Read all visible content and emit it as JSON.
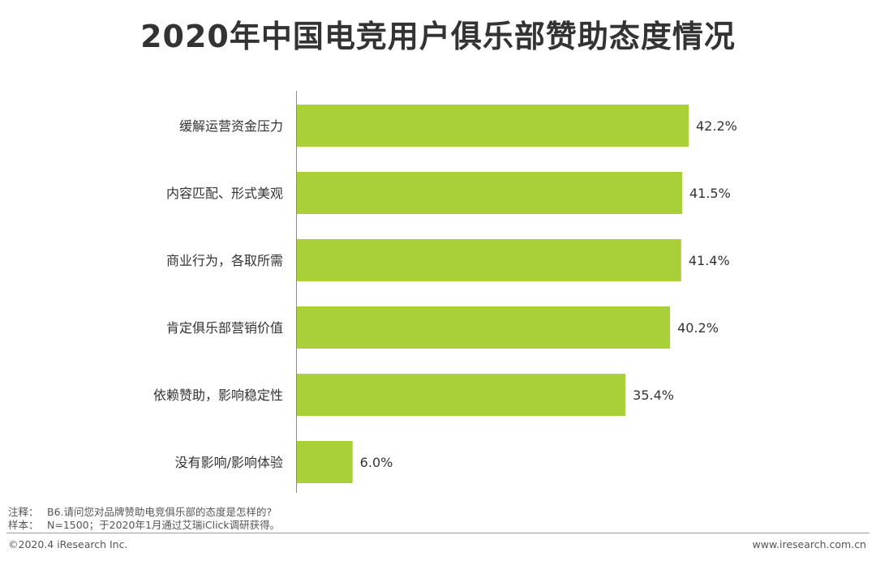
{
  "page": {
    "title": "2020年中国电竞用户俱乐部赞助态度情况"
  },
  "chart_data": {
    "type": "bar",
    "orientation": "horizontal",
    "title": "2020年中国电竞用户俱乐部赞助态度情况",
    "categories": [
      "缓解运营资金压力",
      "内容匹配、形式美观",
      "商业行为，各取所需",
      "肯定俱乐部营销价值",
      "依赖赞助，影响稳定性",
      "没有影响/影响体验"
    ],
    "values": [
      42.2,
      41.5,
      41.4,
      40.2,
      35.4,
      6.0
    ],
    "value_labels": [
      "42.2%",
      "41.5%",
      "41.4%",
      "40.2%",
      "35.4%",
      "6.0%"
    ],
    "unit": "%",
    "bar_color": "#a9d039",
    "xlim": [
      0,
      42.2
    ],
    "grid": false,
    "legend": "none"
  },
  "notes": {
    "note_label": "注释：",
    "note_text": "B6.请问您对品牌赞助电竞俱乐部的态度是怎样的?",
    "sample_label": "样本：",
    "sample_text": "N=1500；于2020年1月通过艾瑞iClick调研获得。"
  },
  "footer": {
    "copyright": "©2020.4 iResearch Inc.",
    "website": "www.iresearch.com.cn"
  }
}
